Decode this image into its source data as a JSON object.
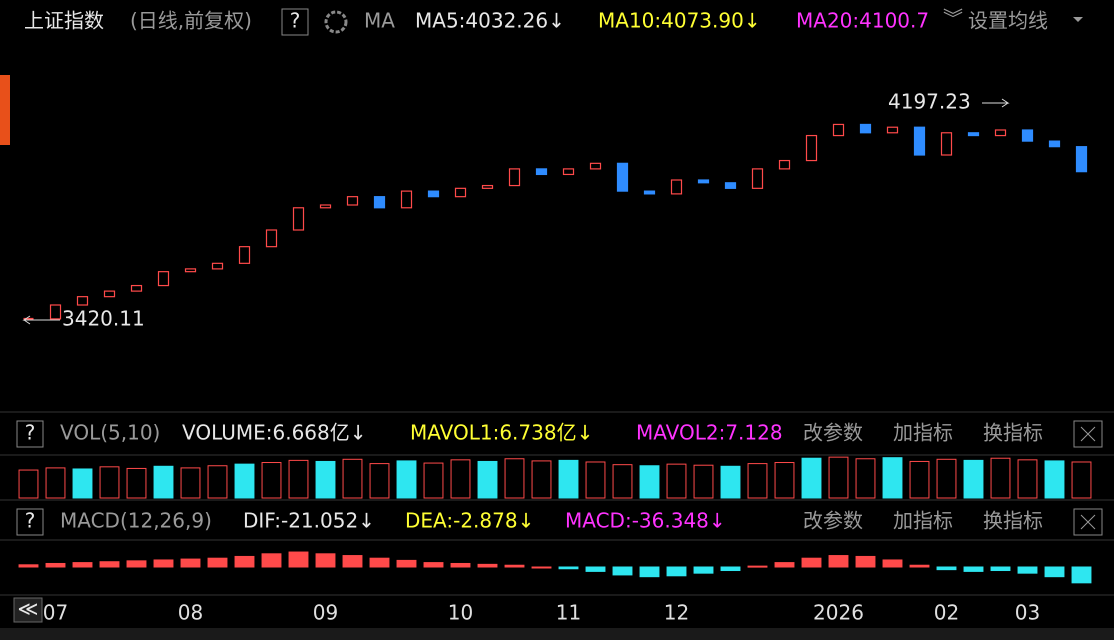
{
  "header": {
    "title": "上证指数",
    "subtitle": "(日线,前复权)",
    "help": "?",
    "ma_label": "MA",
    "ma5": "MA5:4032.26↓",
    "ma10": "MA10:4073.90↓",
    "ma20": "MA20:4100.7",
    "settings": "设置均线"
  },
  "volume_bar": {
    "help": "?",
    "name": "VOL(5,10)",
    "volume": "VOLUME:6.668亿↓",
    "mavol1": "MAVOL1:6.738亿↓",
    "mavol2": "MAVOL2:7.128",
    "edit": "改参数",
    "add": "加指标",
    "swap": "换指标"
  },
  "macd_bar": {
    "help": "?",
    "name": "MACD(12,26,9)",
    "dif": "DIF:-21.052↓",
    "dea": "DEA:-2.878↓",
    "macd": "MACD:-36.348↓",
    "edit": "改参数",
    "add": "加指标",
    "swap": "换指标"
  },
  "chart_data": [
    {
      "type": "candlestick",
      "up_color": "#ff4a4a",
      "down_color": "#2f8cff",
      "categories": [
        null,
        "07",
        null,
        null,
        null,
        null,
        "08",
        null,
        null,
        null,
        null,
        "09",
        null,
        null,
        null,
        null,
        "10",
        null,
        null,
        null,
        "11",
        null,
        null,
        null,
        "12",
        null,
        null,
        null,
        null,
        null,
        "2026",
        null,
        null,
        null,
        "02",
        null,
        null,
        "03",
        null,
        null
      ],
      "close": [
        3420,
        3470,
        3500,
        3520,
        3540,
        3590,
        3600,
        3620,
        3680,
        3740,
        3820,
        3830,
        3860,
        3820,
        3880,
        3860,
        3890,
        3900,
        3960,
        3940,
        3960,
        3980,
        3880,
        3870,
        3920,
        3910,
        3890,
        3960,
        3990,
        4080,
        4120,
        4090,
        4110,
        4010,
        4090,
        4080,
        4100,
        4060,
        4040,
        3950
      ],
      "ylim": [
        3092,
        4424
      ],
      "annotations": [
        "4197.23",
        "3420.11"
      ]
    },
    {
      "type": "bar",
      "up_color": "#ff4a4a",
      "down_color": "#2ee6f0",
      "values": [
        5.2,
        5.6,
        5.4,
        5.8,
        5.5,
        5.9,
        5.6,
        6.0,
        6.3,
        6.6,
        7.0,
        6.8,
        7.2,
        6.4,
        6.9,
        6.5,
        7.1,
        6.8,
        7.3,
        6.9,
        7.0,
        6.7,
        6.2,
        6.0,
        6.3,
        6.1,
        5.9,
        6.4,
        6.6,
        7.4,
        7.6,
        7.3,
        7.5,
        6.8,
        7.2,
        7.0,
        7.4,
        7.1,
        6.9,
        6.7
      ],
      "ylim": [
        0,
        8
      ]
    },
    {
      "type": "bar",
      "up_color": "#ff4a4a",
      "down_color": "#2ee6f0",
      "values": [
        5,
        8,
        10,
        12,
        14,
        16,
        18,
        20,
        24,
        30,
        34,
        30,
        26,
        20,
        15,
        10,
        8,
        6,
        4,
        0,
        -4,
        -10,
        -18,
        -22,
        -20,
        -14,
        -8,
        2,
        10,
        20,
        26,
        24,
        16,
        4,
        -6,
        -10,
        -8,
        -14,
        -22,
        -36
      ],
      "ylim": [
        -50,
        50
      ]
    }
  ]
}
